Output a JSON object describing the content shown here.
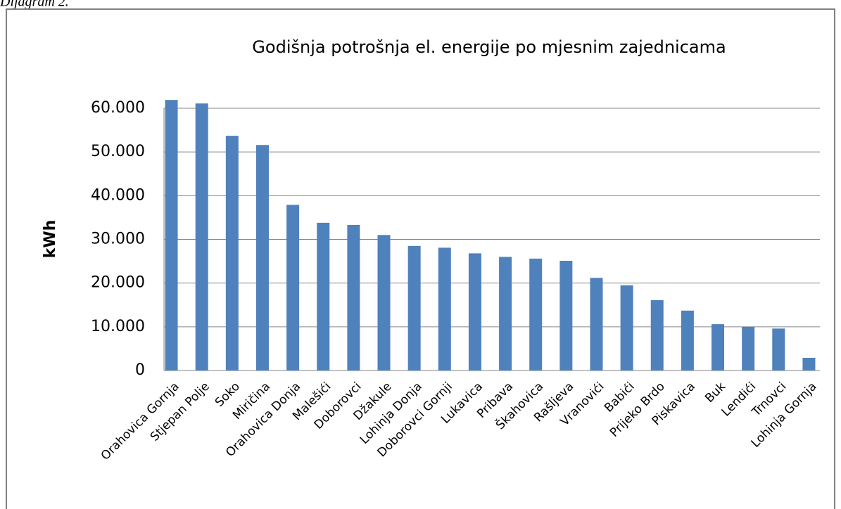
{
  "caption": "Dijagram 2.",
  "chart_data": {
    "type": "bar",
    "title": "Godišnja potrošnja el. energije po mjesnim zajednicama",
    "y_label": "kWh",
    "categories": [
      "Orahovica Gornja",
      "Stjepan Polje",
      "Soko",
      "Miričina",
      "Orahovica Donja",
      "Malešići",
      "Doborovci",
      "Džakule",
      "Lohinja Donja",
      "Doborovci Gornji",
      "Lukavica",
      "Pribava",
      "Škahovica",
      "Rašljeva",
      "Vranovići",
      "Babići",
      "Prijeko Brdo",
      "Piskavica",
      "Buk",
      "Lendići",
      "Trnovci",
      "Lohinja Gornja"
    ],
    "values": [
      61900,
      61100,
      53700,
      51600,
      37900,
      33800,
      33300,
      31000,
      28500,
      28100,
      26800,
      26000,
      25600,
      25100,
      21200,
      19500,
      16100,
      13700,
      10600,
      10000,
      9600,
      2900
    ],
    "color": "#4f81bd",
    "ylim": [
      0,
      60000
    ],
    "yticks": [
      0,
      {
        "value": 10000,
        "label": "10.000"
      },
      {
        "value": 20000,
        "label": "20.000"
      },
      {
        "value": 30000,
        "label": "30.000"
      },
      {
        "value": 40000,
        "label": "40.000"
      },
      {
        "value": 50000,
        "label": "50.000"
      },
      {
        "value": 60000,
        "label": "60.000"
      }
    ],
    "grid": true
  }
}
